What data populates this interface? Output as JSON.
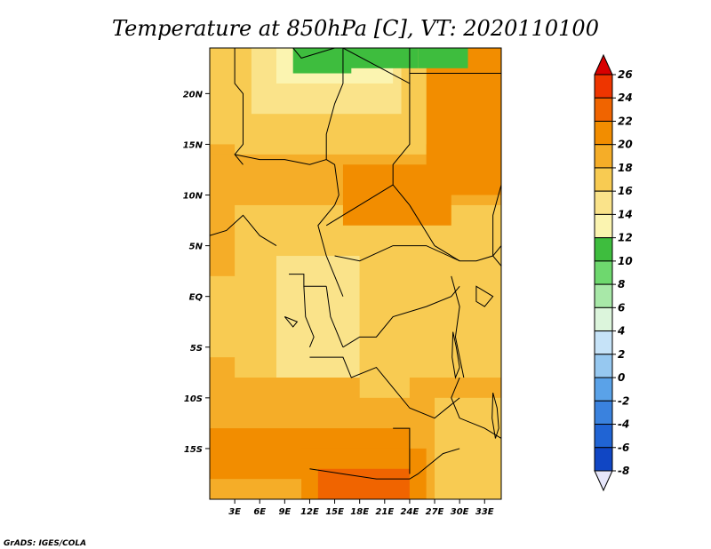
{
  "chart_data": {
    "type": "heatmap",
    "title": "Temperature at 850hPa [C], VT: 2020110100",
    "x_ticks": [
      "3E",
      "6E",
      "9E",
      "12E",
      "15E",
      "18E",
      "21E",
      "24E",
      "27E",
      "30E",
      "33E"
    ],
    "x_tick_values": [
      3,
      6,
      9,
      12,
      15,
      18,
      21,
      24,
      27,
      30,
      33
    ],
    "y_ticks": [
      "20N",
      "15N",
      "10N",
      "5N",
      "EQ",
      "5S",
      "10S",
      "15S"
    ],
    "y_tick_values": [
      20,
      15,
      10,
      5,
      0,
      -5,
      -10,
      -15
    ],
    "xlim": [
      0,
      35
    ],
    "ylim": [
      -20,
      24.5
    ],
    "colorbar": {
      "levels": [
        26,
        24,
        22,
        20,
        18,
        16,
        14,
        12,
        10,
        8,
        6,
        4,
        2,
        0,
        -2,
        -4,
        -6,
        -8
      ],
      "colors": [
        "#d80000",
        "#ee3500",
        "#f06400",
        "#f28d00",
        "#f5ad28",
        "#f8cb52",
        "#fae38a",
        "#fbf4b0",
        "#3ebd3e",
        "#6ed86e",
        "#a8e8a8",
        "#dcf5dc",
        "#c6e3f8",
        "#96c8f0",
        "#5aa2e8",
        "#3a82de",
        "#2064d4",
        "#1046c4",
        "#072a9a",
        "#000064"
      ],
      "low_color": "#e6e6fa"
    },
    "regions": [
      {
        "lon": [
          0,
          35
        ],
        "lat": [
          -20,
          24.5
        ],
        "value": 19
      },
      {
        "lon": [
          0,
          3
        ],
        "lat": [
          -20,
          24.5
        ],
        "value": 20
      },
      {
        "lon": [
          0,
          35
        ],
        "lat": [
          -20,
          -8
        ],
        "value": 21
      },
      {
        "lon": [
          0,
          6
        ],
        "lat": [
          -6,
          2
        ],
        "value": 18
      },
      {
        "lon": [
          8,
          18
        ],
        "lat": [
          -8,
          4
        ],
        "value": 17
      },
      {
        "lon": [
          18,
          30
        ],
        "lat": [
          -10,
          6
        ],
        "value": 19
      },
      {
        "lon": [
          0,
          35
        ],
        "lat": [
          9,
          14
        ],
        "value": 21
      },
      {
        "lon": [
          16,
          29
        ],
        "lat": [
          7,
          13
        ],
        "value": 22
      },
      {
        "lon": [
          26,
          35
        ],
        "lat": [
          10,
          24.5
        ],
        "value": 22
      },
      {
        "lon": [
          29,
          35
        ],
        "lat": [
          14,
          22
        ],
        "value": 23
      },
      {
        "lon": [
          0,
          26
        ],
        "lat": [
          15,
          24.5
        ],
        "value": 19
      },
      {
        "lon": [
          5,
          23
        ],
        "lat": [
          18,
          24.5
        ],
        "value": 17
      },
      {
        "lon": [
          8,
          22
        ],
        "lat": [
          21,
          24.5
        ],
        "value": 15
      },
      {
        "lon": [
          10,
          17
        ],
        "lat": [
          22,
          24.5
        ],
        "value": 13
      },
      {
        "lon": [
          16,
          25
        ],
        "lat": [
          22.5,
          24.5
        ],
        "value": 12
      },
      {
        "lon": [
          25,
          31
        ],
        "lat": [
          22.5,
          24.5
        ],
        "value": 12
      },
      {
        "lon": [
          0,
          35
        ],
        "lat": [
          -18,
          -13
        ],
        "value": 22
      },
      {
        "lon": [
          24,
          35
        ],
        "lat": [
          -20,
          -8
        ],
        "value": 20
      },
      {
        "lon": [
          27,
          35
        ],
        "lat": [
          -20,
          -10
        ],
        "value": 18
      },
      {
        "lon": [
          11,
          26
        ],
        "lat": [
          -20,
          -15
        ],
        "value": 23
      },
      {
        "lon": [
          13,
          24
        ],
        "lat": [
          -20,
          -17
        ],
        "value": 25
      }
    ],
    "borders": [
      [
        [
          3,
          24.5
        ],
        [
          3,
          21
        ],
        [
          4,
          20
        ],
        [
          4,
          15
        ],
        [
          3,
          14
        ],
        [
          4,
          13
        ]
      ],
      [
        [
          10,
          24.5
        ],
        [
          11,
          23.5
        ],
        [
          15,
          24.5
        ]
      ],
      [
        [
          16,
          24.5
        ],
        [
          24,
          21
        ],
        [
          24,
          24.5
        ]
      ],
      [
        [
          24,
          22
        ],
        [
          35,
          22
        ]
      ],
      [
        [
          16,
          24.5
        ],
        [
          16,
          21
        ],
        [
          15,
          19
        ],
        [
          14,
          16
        ],
        [
          14,
          13.5
        ],
        [
          15,
          13
        ],
        [
          15.5,
          10
        ],
        [
          15,
          9
        ]
      ],
      [
        [
          24,
          21
        ],
        [
          24,
          15
        ],
        [
          22,
          13
        ],
        [
          22,
          11
        ],
        [
          24,
          9
        ]
      ],
      [
        [
          3,
          14
        ],
        [
          6,
          13.5
        ],
        [
          9,
          13.5
        ],
        [
          12,
          13
        ],
        [
          14,
          13.5
        ]
      ],
      [
        [
          0,
          6
        ],
        [
          2,
          6.5
        ],
        [
          4,
          8
        ],
        [
          6,
          6
        ],
        [
          8,
          5
        ]
      ],
      [
        [
          14,
          7
        ],
        [
          16,
          8
        ],
        [
          18,
          9
        ],
        [
          22,
          11
        ]
      ],
      [
        [
          15,
          9
        ],
        [
          13,
          7
        ],
        [
          14,
          4
        ],
        [
          15,
          2
        ],
        [
          16,
          0
        ]
      ],
      [
        [
          24,
          9
        ],
        [
          27,
          5
        ],
        [
          30,
          3.5
        ],
        [
          32,
          3.5
        ],
        [
          34,
          4
        ],
        [
          35,
          5
        ]
      ],
      [
        [
          15,
          4
        ],
        [
          18,
          3.5
        ],
        [
          22,
          5
        ],
        [
          26,
          5
        ],
        [
          30,
          3.5
        ]
      ],
      [
        [
          9.5,
          2.2
        ],
        [
          11.3,
          2.2
        ],
        [
          11.3,
          1
        ],
        [
          14,
          1
        ]
      ],
      [
        [
          11.3,
          1
        ],
        [
          11.5,
          -2
        ],
        [
          12.5,
          -4
        ],
        [
          12,
          -5
        ]
      ],
      [
        [
          14,
          1
        ],
        [
          14.5,
          -2
        ],
        [
          15.5,
          -4
        ],
        [
          16,
          -5
        ]
      ],
      [
        [
          16,
          -5
        ],
        [
          18,
          -4
        ],
        [
          20,
          -4
        ],
        [
          22,
          -2
        ],
        [
          26,
          -1
        ],
        [
          29,
          0
        ],
        [
          30,
          1
        ]
      ],
      [
        [
          12,
          -6
        ],
        [
          16,
          -6
        ],
        [
          17,
          -8
        ],
        [
          20,
          -7
        ],
        [
          22,
          -9
        ],
        [
          24,
          -11
        ],
        [
          27,
          -12
        ],
        [
          30,
          -10
        ]
      ],
      [
        [
          12,
          -17
        ],
        [
          16,
          -17.5
        ],
        [
          20,
          -18
        ],
        [
          24,
          -18
        ],
        [
          25,
          -17.5
        ],
        [
          28,
          -15.5
        ],
        [
          30,
          -15
        ]
      ],
      [
        [
          22,
          -13
        ],
        [
          24,
          -13
        ],
        [
          24,
          -17.5
        ]
      ],
      [
        [
          30,
          -8
        ],
        [
          29,
          -10
        ],
        [
          30,
          -12
        ],
        [
          33,
          -13
        ],
        [
          35,
          -14
        ]
      ],
      [
        [
          35,
          11
        ],
        [
          34,
          8
        ],
        [
          34,
          4
        ],
        [
          35,
          3
        ]
      ],
      [
        [
          29,
          2
        ],
        [
          30,
          -1
        ],
        [
          29.5,
          -4
        ],
        [
          30.5,
          -8
        ]
      ]
    ],
    "lakes": [
      [
        [
          32,
          1
        ],
        [
          33,
          0.5
        ],
        [
          34,
          0
        ],
        [
          33,
          -1
        ],
        [
          32,
          -0.5
        ]
      ],
      [
        [
          29.2,
          -3.5
        ],
        [
          29.6,
          -5
        ],
        [
          30,
          -7
        ],
        [
          29.5,
          -8
        ],
        [
          29.1,
          -6
        ]
      ],
      [
        [
          34,
          -9.5
        ],
        [
          34.5,
          -11
        ],
        [
          34.7,
          -13
        ],
        [
          34.3,
          -14
        ],
        [
          33.9,
          -12
        ]
      ],
      [
        [
          9,
          -2
        ],
        [
          10,
          -3
        ],
        [
          10.5,
          -2.5
        ]
      ]
    ],
    "credit": "GrADS: IGES/COLA"
  }
}
